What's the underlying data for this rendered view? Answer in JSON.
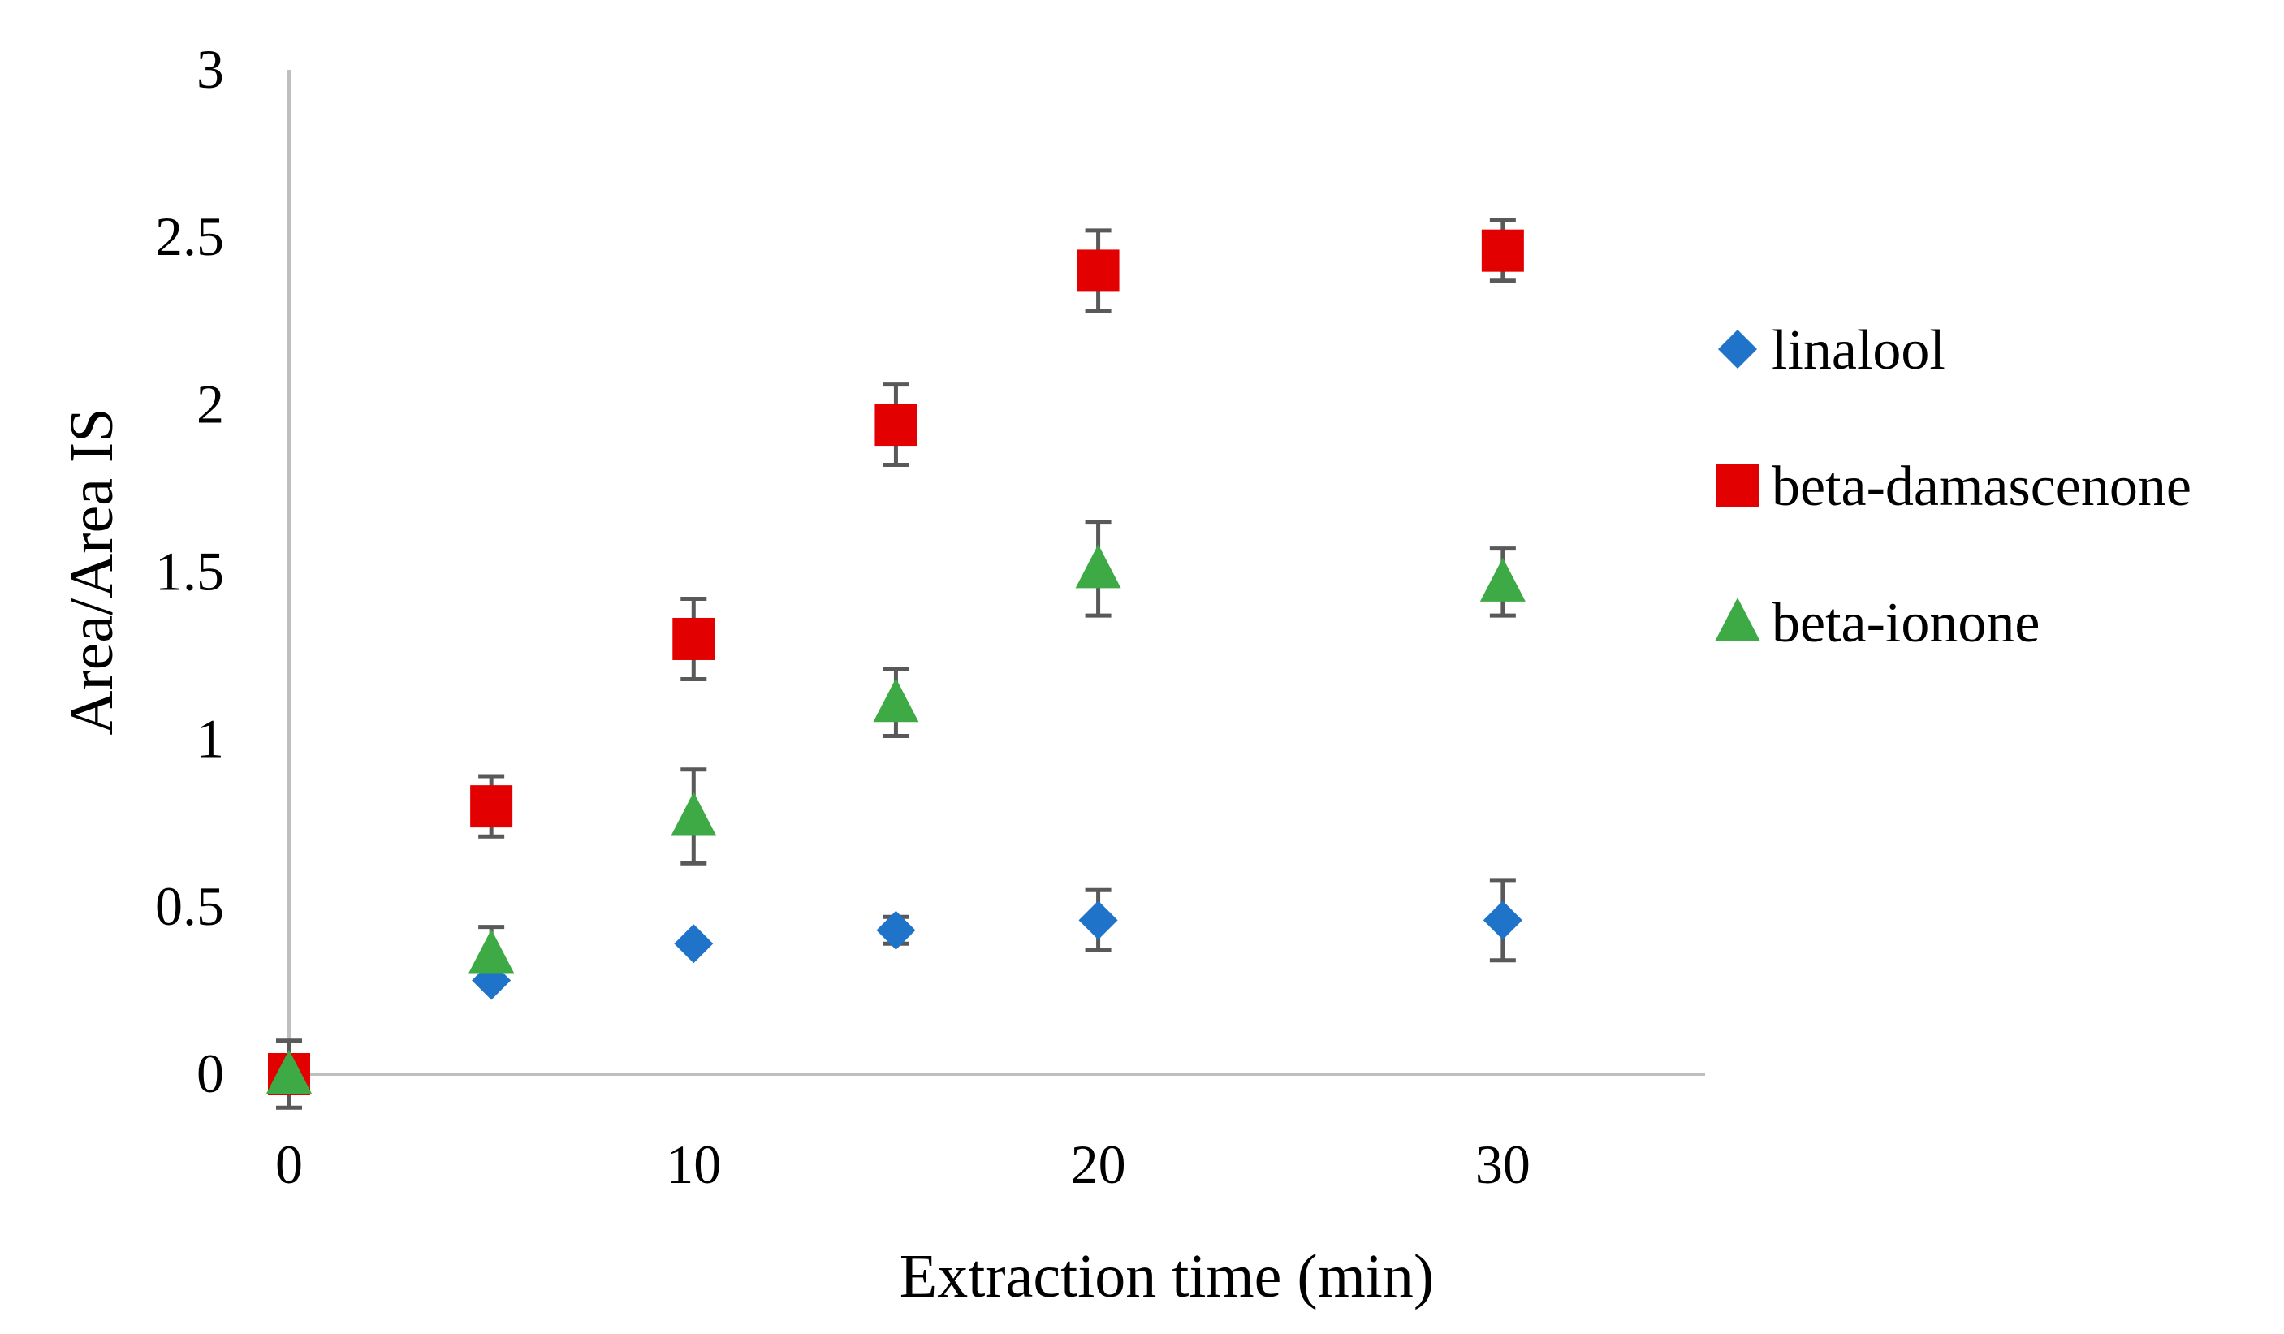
{
  "chart_data": {
    "type": "scatter",
    "title": "",
    "xlabel": "Extraction time (min)",
    "ylabel": "Area/Area IS",
    "xlim": [
      0,
      35
    ],
    "ylim": [
      0,
      3
    ],
    "xticks": [
      0,
      10,
      20,
      30
    ],
    "yticks": [
      0,
      0.5,
      1,
      1.5,
      2,
      2.5,
      3
    ],
    "xtick_labels": [
      "0",
      "10",
      "20",
      "30"
    ],
    "ytick_labels": [
      "0",
      "0.5",
      "1",
      "1.5",
      "2",
      "2.5",
      "3"
    ],
    "grid": false,
    "legend_position": "right",
    "series": [
      {
        "name": "linalool",
        "marker": "diamond",
        "color": "#1F73C9",
        "x": [
          0,
          5,
          10,
          15,
          20,
          30
        ],
        "y": [
          0,
          0.28,
          0.39,
          0.43,
          0.46,
          0.46
        ],
        "err": [
          0,
          0,
          0,
          0.04,
          0.09,
          0.12
        ]
      },
      {
        "name": "beta-damascenone",
        "marker": "square",
        "color": "#E30000",
        "x": [
          0,
          5,
          10,
          15,
          20,
          30
        ],
        "y": [
          0,
          0.8,
          1.3,
          1.94,
          2.4,
          2.46
        ],
        "err": [
          0,
          0.09,
          0.12,
          0.12,
          0.12,
          0.09
        ]
      },
      {
        "name": "beta-ionone",
        "marker": "triangle",
        "color": "#3DAA45",
        "x": [
          0,
          5,
          10,
          15,
          20,
          30
        ],
        "y": [
          0,
          0.36,
          0.77,
          1.11,
          1.51,
          1.47
        ],
        "err": [
          0.1,
          0.08,
          0.14,
          0.1,
          0.14,
          0.1
        ]
      }
    ],
    "colors": {
      "axis": "#BFBFBF",
      "error_bar": "#595959",
      "text": "#000000"
    }
  }
}
